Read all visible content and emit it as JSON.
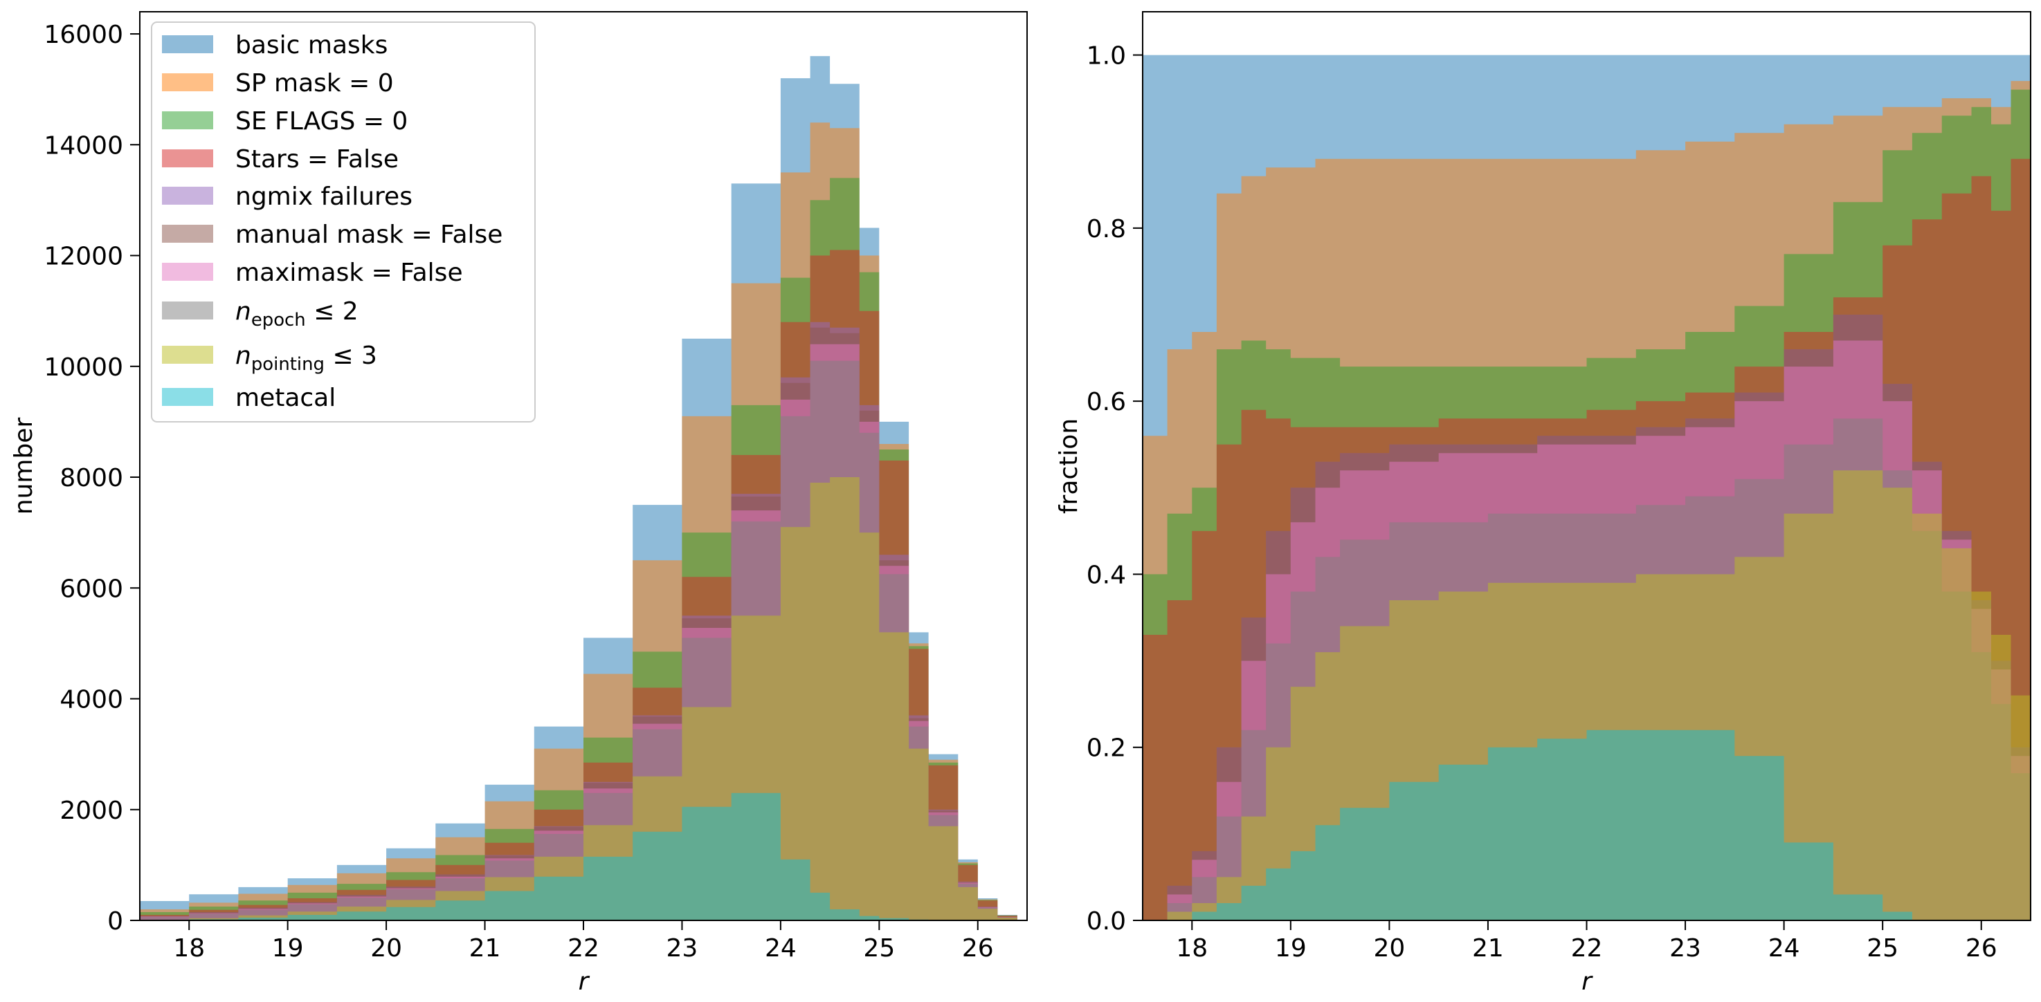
{
  "chart_data": [
    {
      "type": "area",
      "xlabel": "r",
      "ylabel": "number",
      "xlim": [
        17.5,
        26.5
      ],
      "ylim": [
        0,
        16400
      ],
      "x_ticks": [
        "18",
        "19",
        "20",
        "21",
        "22",
        "23",
        "24",
        "25",
        "26"
      ],
      "y_ticks": [
        "0",
        "2000",
        "4000",
        "6000",
        "8000",
        "10000",
        "12000",
        "14000",
        "16000"
      ],
      "grid": false,
      "legend_position": "top-left",
      "x": [
        17.5,
        18.0,
        18.5,
        19.0,
        19.5,
        20.0,
        20.5,
        21.0,
        21.5,
        22.0,
        22.5,
        23.0,
        23.5,
        24.0,
        24.3,
        24.5,
        24.8,
        25.0,
        25.3,
        25.5,
        25.8,
        26.0,
        26.2,
        26.4
      ],
      "series": [
        {
          "name": "basic masks",
          "color": "#1f77b4",
          "values": [
            350,
            470,
            600,
            760,
            1000,
            1300,
            1750,
            2450,
            3500,
            5100,
            7500,
            10500,
            13300,
            15200,
            15600,
            15100,
            12500,
            9000,
            5200,
            3000,
            1100,
            400,
            100,
            0
          ]
        },
        {
          "name": "SP mask = 0",
          "color": "#ff7f0e",
          "values": [
            200,
            320,
            480,
            640,
            850,
            1120,
            1500,
            2150,
            3100,
            4450,
            6500,
            9100,
            11500,
            13500,
            14400,
            14300,
            12000,
            8600,
            5000,
            2900,
            1050,
            380,
            90,
            0
          ]
        },
        {
          "name": "SE FLAGS = 0",
          "color": "#2ca02c",
          "values": [
            150,
            250,
            360,
            500,
            660,
            870,
            1180,
            1650,
            2350,
            3300,
            4850,
            7000,
            9300,
            11600,
            13000,
            13400,
            11700,
            8500,
            4950,
            2850,
            1030,
            370,
            90,
            0
          ]
        },
        {
          "name": "Stars = False",
          "color": "#d62728",
          "values": [
            100,
            190,
            280,
            400,
            550,
            730,
            1000,
            1400,
            2000,
            2850,
            4200,
            6200,
            8400,
            10800,
            12000,
            12100,
            11000,
            8300,
            4900,
            2800,
            1000,
            360,
            85,
            0
          ]
        },
        {
          "name": "ngmix failures",
          "color": "#9467bd",
          "values": [
            80,
            150,
            230,
            330,
            460,
            610,
            830,
            1180,
            1700,
            2500,
            3700,
            5500,
            7700,
            9800,
            10800,
            10700,
            9300,
            6600,
            3700,
            2000,
            700,
            250,
            60,
            0
          ]
        },
        {
          "name": "manual mask = False",
          "color": "#8c564b",
          "values": [
            80,
            150,
            230,
            330,
            460,
            610,
            830,
            1170,
            1690,
            2480,
            3680,
            5450,
            7650,
            9700,
            10700,
            10600,
            9200,
            6500,
            3650,
            1980,
            690,
            250,
            60,
            0
          ]
        },
        {
          "name": "maximask = False",
          "color": "#e377c2",
          "values": [
            70,
            130,
            210,
            310,
            430,
            580,
            790,
            1120,
            1620,
            2380,
            3550,
            5280,
            7400,
            9400,
            10400,
            10400,
            9000,
            6400,
            3600,
            1950,
            680,
            240,
            60,
            0
          ]
        },
        {
          "name": "$n_{epoch} \\leq 2$",
          "color": "#7f7f7f",
          "values": [
            60,
            120,
            190,
            290,
            410,
            560,
            760,
            1080,
            1560,
            2300,
            3450,
            5100,
            7200,
            9100,
            10100,
            10100,
            8800,
            6250,
            3500,
            1900,
            660,
            230,
            55,
            0
          ]
        },
        {
          "name": "$n_{pointing} \\leq 3$",
          "color": "#bcbd22",
          "values": [
            10,
            40,
            90,
            160,
            250,
            370,
            530,
            780,
            1150,
            1720,
            2600,
            3850,
            5500,
            7100,
            7900,
            8000,
            7000,
            5200,
            3100,
            1700,
            600,
            210,
            50,
            0
          ]
        },
        {
          "name": "metacal",
          "color": "#17becf",
          "values": [
            5,
            20,
            50,
            100,
            160,
            240,
            360,
            530,
            790,
            1150,
            1600,
            2050,
            2300,
            1100,
            500,
            200,
            80,
            40,
            15,
            5,
            0,
            0,
            0,
            0
          ]
        }
      ]
    },
    {
      "type": "area",
      "xlabel": "r",
      "ylabel": "fraction",
      "xlim": [
        17.5,
        26.5
      ],
      "ylim": [
        0.0,
        1.05
      ],
      "x_ticks": [
        "18",
        "19",
        "20",
        "21",
        "22",
        "23",
        "24",
        "25",
        "26"
      ],
      "y_ticks": [
        "0.0",
        "0.2",
        "0.4",
        "0.6",
        "0.8",
        "1.0"
      ],
      "grid": false,
      "x": [
        17.5,
        17.75,
        18.0,
        18.25,
        18.5,
        18.75,
        19.0,
        19.25,
        19.5,
        20.0,
        20.5,
        21.0,
        21.5,
        22.0,
        22.5,
        23.0,
        23.5,
        24.0,
        24.5,
        25.0,
        25.3,
        25.6,
        25.9,
        26.1,
        26.3,
        26.5
      ],
      "series": [
        {
          "name": "basic masks",
          "color": "#1f77b4",
          "values": [
            1.0,
            1.0,
            1.0,
            1.0,
            1.0,
            1.0,
            1.0,
            1.0,
            1.0,
            1.0,
            1.0,
            1.0,
            1.0,
            1.0,
            1.0,
            1.0,
            1.0,
            1.0,
            1.0,
            1.0,
            1.0,
            1.0,
            1.0,
            1.0,
            1.0,
            1.0
          ]
        },
        {
          "name": "SP mask = 0",
          "color": "#ff7f0e",
          "values": [
            0.56,
            0.66,
            0.68,
            0.84,
            0.86,
            0.87,
            0.87,
            0.88,
            0.88,
            0.88,
            0.88,
            0.88,
            0.88,
            0.88,
            0.89,
            0.9,
            0.91,
            0.92,
            0.93,
            0.94,
            0.94,
            0.95,
            0.95,
            0.94,
            0.97,
            0.87
          ]
        },
        {
          "name": "SE FLAGS = 0",
          "color": "#2ca02c",
          "values": [
            0.4,
            0.47,
            0.5,
            0.66,
            0.67,
            0.66,
            0.65,
            0.65,
            0.64,
            0.64,
            0.64,
            0.64,
            0.64,
            0.65,
            0.66,
            0.68,
            0.71,
            0.77,
            0.83,
            0.89,
            0.91,
            0.93,
            0.94,
            0.92,
            0.96,
            0.95
          ]
        },
        {
          "name": "Stars = False",
          "color": "#d62728",
          "values": [
            0.33,
            0.37,
            0.45,
            0.55,
            0.59,
            0.58,
            0.57,
            0.57,
            0.57,
            0.57,
            0.58,
            0.58,
            0.58,
            0.59,
            0.6,
            0.61,
            0.64,
            0.68,
            0.72,
            0.78,
            0.81,
            0.84,
            0.86,
            0.82,
            0.88,
            0.86
          ]
        },
        {
          "name": "ngmix failures",
          "color": "#9467bd",
          "values": [
            0.0,
            0.04,
            0.08,
            0.2,
            0.35,
            0.45,
            0.5,
            0.53,
            0.54,
            0.55,
            0.55,
            0.55,
            0.56,
            0.56,
            0.57,
            0.58,
            0.61,
            0.66,
            0.7,
            0.62,
            0.53,
            0.45,
            0.37,
            0.3,
            0.2,
            0.19
          ]
        },
        {
          "name": "manual mask = False",
          "color": "#8c564b",
          "values": [
            0.0,
            0.04,
            0.08,
            0.2,
            0.35,
            0.45,
            0.5,
            0.53,
            0.54,
            0.55,
            0.55,
            0.55,
            0.56,
            0.56,
            0.57,
            0.58,
            0.61,
            0.66,
            0.7,
            0.62,
            0.53,
            0.45,
            0.37,
            0.3,
            0.2,
            0.19
          ]
        },
        {
          "name": "maximask = False",
          "color": "#e377c2",
          "values": [
            0.0,
            0.03,
            0.07,
            0.16,
            0.3,
            0.4,
            0.46,
            0.5,
            0.52,
            0.53,
            0.54,
            0.54,
            0.55,
            0.55,
            0.56,
            0.57,
            0.6,
            0.64,
            0.67,
            0.6,
            0.52,
            0.44,
            0.36,
            0.29,
            0.19,
            0.18
          ]
        },
        {
          "name": "$n_{epoch} \\leq 2$",
          "color": "#7f7f7f",
          "values": [
            0.0,
            0.02,
            0.05,
            0.12,
            0.22,
            0.32,
            0.38,
            0.42,
            0.44,
            0.46,
            0.46,
            0.47,
            0.47,
            0.47,
            0.48,
            0.49,
            0.51,
            0.55,
            0.58,
            0.52,
            0.45,
            0.38,
            0.31,
            0.25,
            0.17,
            0.16
          ]
        },
        {
          "name": "$n_{pointing} \\leq 3$",
          "color": "#bcbd22",
          "values": [
            0.0,
            0.01,
            0.02,
            0.05,
            0.12,
            0.2,
            0.27,
            0.31,
            0.34,
            0.37,
            0.38,
            0.39,
            0.39,
            0.39,
            0.4,
            0.4,
            0.42,
            0.47,
            0.52,
            0.5,
            0.47,
            0.43,
            0.38,
            0.33,
            0.26,
            0.24
          ]
        },
        {
          "name": "metacal",
          "color": "#17becf",
          "values": [
            0.0,
            0.0,
            0.01,
            0.02,
            0.04,
            0.06,
            0.08,
            0.11,
            0.13,
            0.16,
            0.18,
            0.2,
            0.21,
            0.22,
            0.22,
            0.22,
            0.19,
            0.09,
            0.03,
            0.01,
            0.0,
            0.0,
            0.0,
            0.0,
            0.0,
            0.0
          ]
        }
      ]
    }
  ]
}
